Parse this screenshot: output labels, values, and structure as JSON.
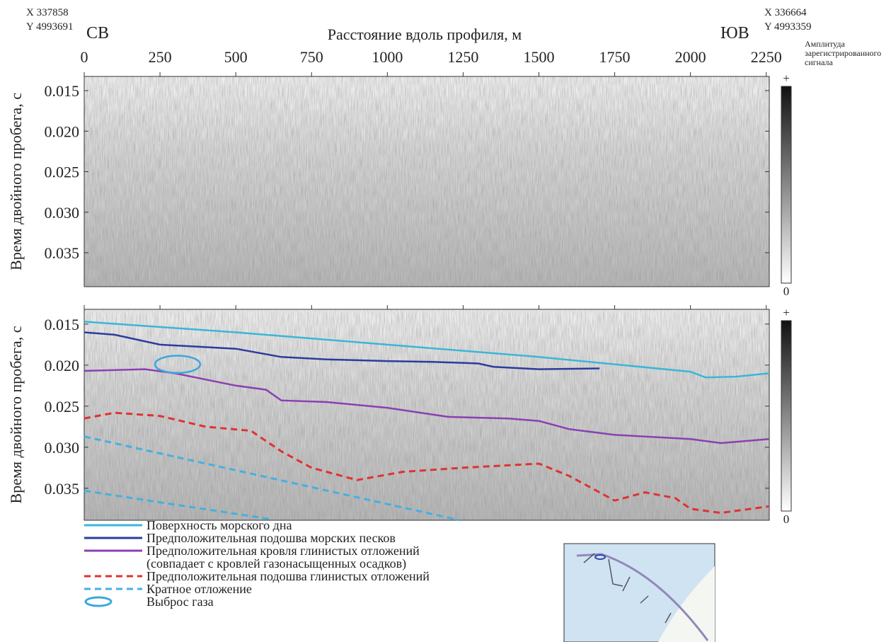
{
  "corners": {
    "left": {
      "x": "X 337858",
      "y": "Y 4993691",
      "label": "СВ"
    },
    "right": {
      "x": "X 336664",
      "y": "Y 4993359",
      "label": "ЮВ"
    }
  },
  "colorbar_title": [
    "Амплитуда",
    "зарегистрированного",
    "сигнала"
  ],
  "chart_data": [
    {
      "type": "line",
      "xlabel": "Расстояние вдоль профиля, м",
      "ylabel": "Время двойного пробега, с",
      "xlim": [
        0,
        2260
      ],
      "xticks": [
        0,
        250,
        500,
        750,
        1000,
        1250,
        1500,
        1750,
        2000,
        2250
      ],
      "ylim": [
        0.01325,
        0.03919
      ],
      "yticks": [
        0.015,
        {
          "value": 0.02,
          "label": "0.020"
        },
        0.025,
        {
          "value": 0.03,
          "label": "0.030"
        },
        0.035
      ],
      "colorbar": {
        "max_label": "+",
        "min_label": "0"
      },
      "series": []
    },
    {
      "type": "line",
      "ylabel": "Время двойного пробега, с",
      "xlim": [
        0,
        2260
      ],
      "xticks": [
        0,
        250,
        500,
        750,
        1000,
        1250,
        1500,
        1750,
        2000,
        2250
      ],
      "ylim": [
        0.0132,
        0.0389
      ],
      "yticks": [
        0.015,
        {
          "value": 0.02,
          "label": "0.020"
        },
        0.025,
        {
          "value": 0.03,
          "label": "0.030"
        },
        0.035
      ],
      "colorbar": {
        "max_label": "+",
        "min_label": "0"
      },
      "series": [
        {
          "name": "Поверхность морского дна",
          "color": "#3ab6d8",
          "dash": false,
          "x": [
            0,
            500,
            1000,
            1500,
            2000,
            2050,
            2150,
            2260
          ],
          "values": [
            0.0147,
            0.016,
            0.0175,
            0.019,
            0.0208,
            0.0215,
            0.0214,
            0.021
          ]
        },
        {
          "name": "Предположительная подошва морских песков",
          "color": "#2c3c9c",
          "dash": false,
          "x": [
            0,
            100,
            250,
            500,
            650,
            800,
            1000,
            1150,
            1300,
            1350,
            1500,
            1700
          ],
          "values": [
            0.016,
            0.0163,
            0.0175,
            0.018,
            0.019,
            0.0193,
            0.0195,
            0.0196,
            0.0198,
            0.0202,
            0.0205,
            0.0204
          ]
        },
        {
          "name": "Предположительная кровля глинистых отложений\n(совпадает с кровлей газонасыщенных осадков)",
          "color": "#8b3fb2",
          "dash": false,
          "x": [
            0,
            200,
            300,
            500,
            600,
            650,
            800,
            1000,
            1200,
            1400,
            1500,
            1600,
            1750,
            2000,
            2100,
            2260
          ],
          "values": [
            0.0207,
            0.0205,
            0.021,
            0.0225,
            0.023,
            0.0243,
            0.0245,
            0.0252,
            0.0263,
            0.0265,
            0.0268,
            0.0278,
            0.0285,
            0.029,
            0.0295,
            0.029
          ]
        },
        {
          "name": "Предположительная подошва глинистых отложений",
          "color": "#e03232",
          "dash": true,
          "x": [
            0,
            100,
            250,
            400,
            550,
            650,
            750,
            900,
            1050,
            1250,
            1400,
            1500,
            1600,
            1750,
            1850,
            1950,
            2000,
            2100,
            2260
          ],
          "values": [
            0.0265,
            0.0258,
            0.0262,
            0.0275,
            0.028,
            0.0305,
            0.0325,
            0.034,
            0.033,
            0.0325,
            0.0322,
            0.032,
            0.0335,
            0.0365,
            0.0355,
            0.0362,
            0.0375,
            0.038,
            0.0372
          ]
        },
        {
          "name": "Кратное отложение",
          "color": "#45b0e0",
          "dash": true,
          "x": [
            0,
            1240,
            null,
            0,
            620
          ],
          "values": [
            0.0287,
            0.0389,
            null,
            0.0353,
            0.0388
          ]
        }
      ],
      "gas_ellipse": {
        "name": "Выброс газа",
        "color": "#39a8dd",
        "x": 308,
        "y": 0.0199,
        "width": 149,
        "height": 0.0021
      }
    }
  ]
}
